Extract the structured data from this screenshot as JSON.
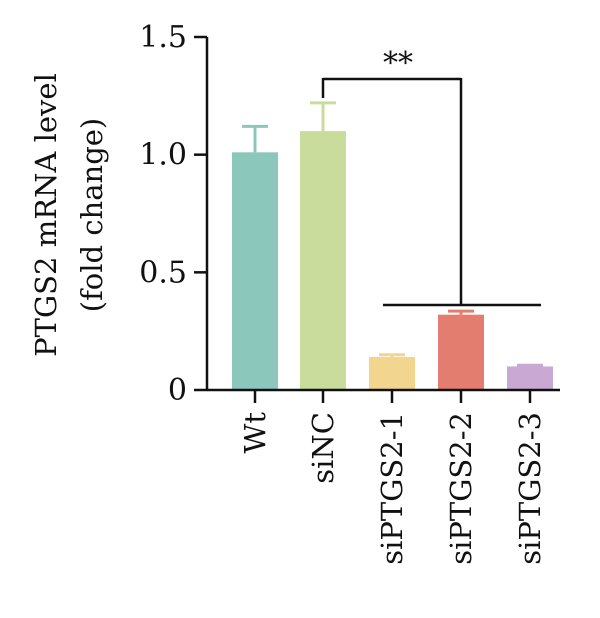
{
  "chart_data": {
    "type": "bar",
    "title": "",
    "xlabel": "",
    "ylabel_line1": "PTGS2 mRNA level",
    "ylabel_line2": "(fold change)",
    "ylim": [
      0,
      1.5
    ],
    "yticks": [
      {
        "value": 0,
        "label": "0"
      },
      {
        "value": 0.5,
        "label": "0.5"
      },
      {
        "value": 1.0,
        "label": "1.0"
      },
      {
        "value": 1.5,
        "label": "1.5"
      }
    ],
    "categories": [
      "Wt",
      "siNC",
      "siPTGS2-1",
      "siPTGS2-2",
      "siPTGS2-3"
    ],
    "values": [
      1.01,
      1.1,
      0.14,
      0.32,
      0.1
    ],
    "errors": [
      0.11,
      0.12,
      0.01,
      0.015,
      0.005
    ],
    "colors": [
      "#8cc7bb",
      "#c9dc9c",
      "#f2d58f",
      "#e37d6f",
      "#c9a8d3"
    ],
    "significance": {
      "label": "**",
      "from": "siNC",
      "to": "siPTGS2-2"
    },
    "grid": false,
    "legend": "none"
  }
}
